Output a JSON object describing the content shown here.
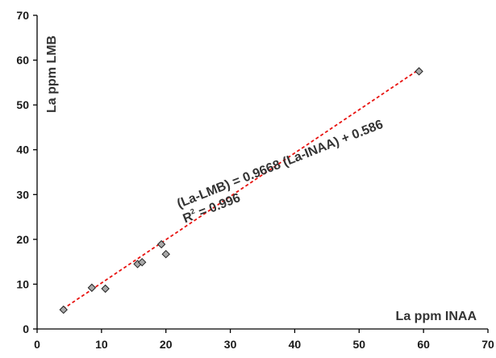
{
  "chart_data": {
    "type": "scatter",
    "title": "",
    "xlabel": "La ppm INAA",
    "ylabel": "La ppm LMB",
    "xlim": [
      0,
      70
    ],
    "ylim": [
      0,
      70
    ],
    "x_ticks": [
      0,
      10,
      20,
      30,
      40,
      50,
      60,
      70
    ],
    "y_ticks": [
      0,
      10,
      20,
      30,
      40,
      50,
      60,
      70
    ],
    "grid": false,
    "legend": "none",
    "points": [
      {
        "x": 4.1,
        "y": 4.3
      },
      {
        "x": 8.5,
        "y": 9.2
      },
      {
        "x": 10.6,
        "y": 9.0
      },
      {
        "x": 15.6,
        "y": 14.5
      },
      {
        "x": 16.3,
        "y": 14.9
      },
      {
        "x": 19.3,
        "y": 18.9
      },
      {
        "x": 20.0,
        "y": 16.7
      },
      {
        "x": 59.3,
        "y": 57.5
      }
    ],
    "trendline": {
      "type": "linear",
      "slope": 0.9668,
      "intercept": 0.586,
      "x_range": [
        4,
        59.3
      ],
      "equation": "(La-LMB) = 0.9668 (La-INAA) + 0.586",
      "r2_prefix": "R",
      "r2_sup": "2",
      "r2_value": " = 0.996",
      "color": "#e8120f"
    },
    "marker_fill": "#a8a8a8",
    "marker_stroke": "#222222",
    "axis_color": "#000000"
  }
}
